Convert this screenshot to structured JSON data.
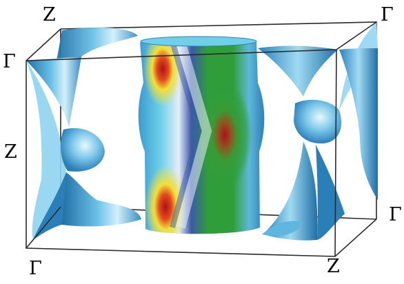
{
  "labels": {
    "top_left": "Z",
    "top_right": "Γ",
    "upper_left": "Γ",
    "middle_left": "Z",
    "lower_right": "Γ",
    "bottom_left": "Γ",
    "bottom_middle": "Z"
  },
  "colors": {
    "box_edge": "#2a2a2a",
    "sheet_light": "#c7ecf8",
    "sheet_mid": "#5fb6df",
    "sheet_dark": "#1f6fa6",
    "cylinder_hot": "#c0141e",
    "cylinder_warm": "#f2e03a",
    "cylinder_green": "#2f9e3a",
    "cylinder_cool": "#3c5aa8",
    "cylinder_pale": "#e6eef8"
  },
  "icons": {
    "surface": "fermi-surface",
    "box": "brillouin-zone-box"
  }
}
